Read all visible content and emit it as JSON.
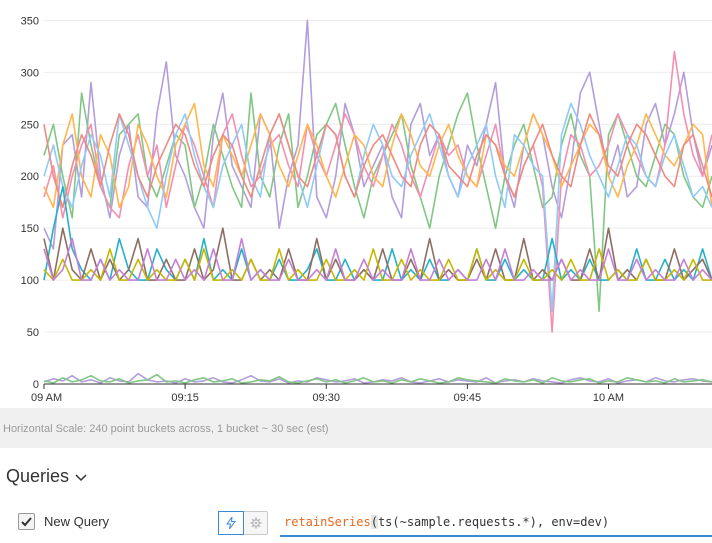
{
  "chart_data": {
    "type": "line",
    "title": "",
    "xlabel": "",
    "ylabel": "",
    "ylim": [
      0,
      360
    ],
    "yticks": [
      0,
      50,
      100,
      150,
      200,
      250,
      300,
      350
    ],
    "xticks": [
      "09 AM",
      "09:15",
      "09:30",
      "09:45",
      "10 AM"
    ],
    "x_range_minutes": [
      0,
      71
    ],
    "grid": true,
    "legend": "none",
    "series_colors": [
      "#b39ddb",
      "#81c784",
      "#f48fb1",
      "#ffb74d",
      "#90caf9",
      "#f08a80",
      "#26b0c8",
      "#8d6e63",
      "#c6b800",
      "#c67fd6"
    ],
    "series": [
      {
        "values": [
          150,
          130,
          230,
          240,
          180,
          290,
          200,
          160,
          220,
          250,
          180,
          170,
          260,
          310,
          220,
          200,
          170,
          150,
          240,
          280,
          210,
          190,
          170,
          260,
          240,
          150,
          200,
          230,
          350,
          180,
          160,
          200,
          270,
          240,
          190,
          210,
          230,
          180,
          160,
          250,
          270,
          220,
          240,
          200,
          180,
          230,
          210,
          250,
          290,
          200,
          170,
          230,
          260,
          240,
          190,
          160,
          210,
          280,
          300,
          250,
          200,
          230,
          180,
          190,
          250,
          270,
          230,
          260,
          300,
          240,
          200,
          230
        ]
      },
      {
        "values": [
          220,
          250,
          200,
          160,
          280,
          230,
          190,
          170,
          240,
          250,
          260,
          200,
          180,
          210,
          240,
          230,
          170,
          200,
          250,
          220,
          190,
          170,
          280,
          200,
          180,
          230,
          260,
          170,
          200,
          240,
          250,
          270,
          230,
          190,
          160,
          200,
          220,
          240,
          260,
          210,
          180,
          150,
          200,
          230,
          260,
          280,
          230,
          190,
          150,
          200,
          230,
          250,
          210,
          170,
          180,
          230,
          260,
          220,
          200,
          70,
          240,
          260,
          230,
          200,
          190,
          220,
          250,
          240,
          200,
          180,
          170,
          200
        ]
      },
      {
        "values": [
          180,
          210,
          160,
          200,
          230,
          250,
          190,
          170,
          160,
          210,
          240,
          200,
          230,
          170,
          210,
          250,
          230,
          200,
          170,
          240,
          260,
          220,
          190,
          200,
          230,
          240,
          210,
          190,
          250,
          220,
          200,
          230,
          260,
          240,
          210,
          190,
          220,
          250,
          230,
          200,
          180,
          210,
          240,
          220,
          230,
          200,
          190,
          220,
          250,
          200,
          180,
          210,
          230,
          190,
          50,
          200,
          240,
          230,
          200,
          210,
          230,
          260,
          240,
          220,
          200,
          190,
          230,
          320,
          260,
          220,
          200,
          240
        ]
      },
      {
        "values": [
          190,
          170,
          230,
          260,
          200,
          180,
          240,
          220,
          170,
          190,
          250,
          230,
          200,
          180,
          230,
          250,
          270,
          210,
          190,
          240,
          220,
          200,
          230,
          260,
          240,
          210,
          190,
          220,
          250,
          230,
          200,
          180,
          210,
          240,
          230,
          200,
          190,
          230,
          260,
          240,
          210,
          200,
          230,
          250,
          220,
          200,
          190,
          240,
          230,
          210,
          200,
          230,
          260,
          240,
          220,
          190,
          210,
          230,
          250,
          240,
          200,
          180,
          210,
          230,
          260,
          240,
          220,
          210,
          230,
          250,
          240,
          170
        ]
      },
      {
        "values": [
          200,
          230,
          190,
          170,
          210,
          240,
          220,
          180,
          260,
          230,
          200,
          170,
          150,
          200,
          240,
          260,
          220,
          190,
          170,
          210,
          230,
          250,
          200,
          180,
          240,
          260,
          230,
          200,
          170,
          210,
          250,
          240,
          200,
          180,
          220,
          250,
          230,
          200,
          190,
          220,
          240,
          260,
          230,
          200,
          180,
          210,
          230,
          250,
          200,
          170,
          240,
          230,
          210,
          200,
          70,
          240,
          270,
          250,
          220,
          200,
          180,
          210,
          240,
          230,
          200,
          190,
          220,
          240,
          210,
          180,
          190,
          170
        ]
      },
      {
        "values": [
          250,
          200,
          170,
          210,
          240,
          220,
          190,
          230,
          260,
          240,
          200,
          180,
          210,
          230,
          250,
          240,
          210,
          190,
          220,
          240,
          230,
          200,
          180,
          210,
          240,
          260,
          230,
          200,
          190,
          220,
          250,
          240,
          200,
          180,
          210,
          230,
          240,
          220,
          200,
          190,
          230,
          250,
          240,
          210,
          200,
          190,
          220,
          240,
          230,
          200,
          180,
          210,
          230,
          250,
          220,
          200,
          190,
          230,
          260,
          240,
          210,
          200,
          230,
          250,
          240,
          220,
          200,
          190,
          230,
          240,
          210,
          180
        ]
      },
      {
        "values": [
          100,
          150,
          190,
          130,
          110,
          100,
          120,
          100,
          140,
          110,
          100,
          100,
          130,
          110,
          100,
          120,
          100,
          140,
          100,
          110,
          100,
          130,
          100,
          110,
          100,
          120,
          100,
          100,
          110,
          130,
          100,
          100,
          120,
          100,
          110,
          100,
          100,
          130,
          100,
          110,
          100,
          120,
          100,
          100,
          110,
          100,
          130,
          100,
          100,
          120,
          100,
          110,
          100,
          100,
          140,
          100,
          110,
          100,
          120,
          100,
          100,
          110,
          100,
          130,
          100,
          100,
          120,
          100,
          110,
          100,
          130,
          100
        ]
      },
      {
        "values": [
          140,
          100,
          150,
          110,
          100,
          130,
          100,
          120,
          100,
          110,
          140,
          100,
          100,
          120,
          100,
          100,
          130,
          100,
          110,
          150,
          100,
          100,
          120,
          100,
          110,
          100,
          130,
          100,
          100,
          140,
          100,
          120,
          100,
          100,
          110,
          100,
          130,
          100,
          100,
          120,
          100,
          140,
          100,
          110,
          100,
          100,
          120,
          100,
          130,
          100,
          100,
          140,
          100,
          110,
          100,
          120,
          100,
          100,
          130,
          100,
          150,
          100,
          110,
          100,
          120,
          100,
          100,
          130,
          100,
          110,
          120,
          100
        ]
      },
      {
        "values": [
          110,
          100,
          120,
          100,
          100,
          110,
          100,
          130,
          100,
          100,
          120,
          100,
          110,
          100,
          100,
          120,
          100,
          130,
          100,
          100,
          110,
          100,
          120,
          100,
          100,
          130,
          100,
          110,
          100,
          100,
          120,
          100,
          100,
          110,
          100,
          130,
          100,
          100,
          120,
          100,
          110,
          100,
          100,
          120,
          100,
          100,
          130,
          100,
          110,
          100,
          100,
          120,
          100,
          100,
          110,
          100,
          120,
          100,
          100,
          130,
          100,
          110,
          100,
          100,
          120,
          100,
          100,
          110,
          100,
          120,
          100,
          100
        ]
      },
      {
        "values": [
          130,
          100,
          110,
          140,
          100,
          100,
          120,
          100,
          110,
          100,
          100,
          130,
          100,
          100,
          120,
          100,
          110,
          100,
          130,
          100,
          100,
          140,
          100,
          110,
          100,
          100,
          120,
          100,
          100,
          110,
          100,
          130,
          100,
          100,
          120,
          100,
          110,
          100,
          100,
          130,
          100,
          100,
          120,
          100,
          110,
          100,
          100,
          120,
          100,
          130,
          100,
          100,
          110,
          100,
          100,
          120,
          100,
          110,
          100,
          100,
          130,
          100,
          100,
          120,
          100,
          110,
          100,
          100,
          120,
          100,
          110,
          100
        ]
      },
      {
        "values": [
          2,
          5,
          3,
          8,
          2,
          4,
          1,
          6,
          3,
          2,
          10,
          4,
          2,
          3,
          1,
          5,
          2,
          3,
          6,
          2,
          1,
          4,
          8,
          3,
          2,
          5,
          1,
          3,
          2,
          6,
          4,
          2,
          3,
          5,
          1,
          2,
          4,
          3,
          6,
          2,
          1,
          3,
          5,
          2,
          4,
          3,
          2,
          6,
          1,
          3,
          4,
          2,
          5,
          3,
          2,
          1,
          4,
          6,
          3,
          2,
          5,
          1,
          3,
          4,
          2,
          6,
          3,
          2,
          4,
          5,
          3,
          2
        ]
      },
      {
        "values": [
          3,
          1,
          6,
          2,
          4,
          8,
          3,
          2,
          5,
          1,
          3,
          4,
          9,
          2,
          3,
          1,
          4,
          6,
          2,
          3,
          5,
          1,
          2,
          4,
          3,
          7,
          2,
          1,
          3,
          5,
          2,
          4,
          1,
          3,
          6,
          2,
          3,
          1,
          4,
          2,
          5,
          3,
          1,
          2,
          6,
          4,
          3,
          2,
          1,
          5,
          3,
          2,
          4,
          1,
          6,
          3,
          2,
          4,
          5,
          1,
          3,
          2,
          6,
          4,
          2,
          3,
          1,
          5,
          2,
          3,
          4,
          2
        ]
      }
    ]
  },
  "scale_text": "Horizontal Scale: 240 point buckets across, 1 bucket ~ 30 sec (est)",
  "queries": {
    "title": "Queries",
    "chevron_icon": "chevron-down-icon",
    "rows": [
      {
        "name": "New Query",
        "checked": true,
        "lightning_icon": "lightning-icon",
        "settings_icon": "gear-icon",
        "query_fn": "retainSeries",
        "query_open": "(",
        "query_rest": "ts(~sample.requests.*), env=dev)"
      }
    ]
  },
  "colors": {
    "accent": "#3b8ad8",
    "query_fn": "#e8691c"
  }
}
